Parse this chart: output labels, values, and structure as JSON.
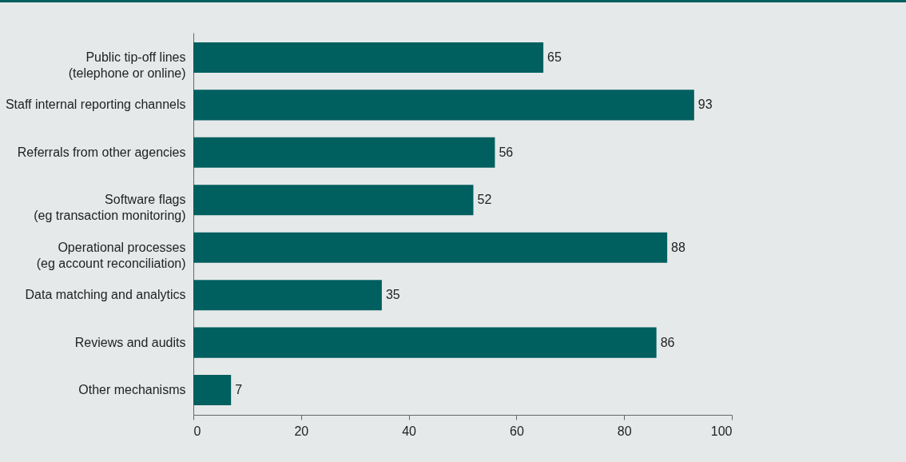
{
  "chart_data": {
    "type": "bar",
    "orientation": "horizontal",
    "categories": [
      "Public tip-off lines (telephone or online)",
      "Staff internal reporting channels",
      "Referrals from other agencies",
      "Software flags (eg transaction monitoring)",
      "Operational processes (eg account reconciliation)",
      "Data matching and analytics",
      "Reviews and audits",
      "Other mechanisms"
    ],
    "values": [
      65,
      93,
      56,
      52,
      88,
      35,
      86,
      7
    ],
    "color": "#005f5f",
    "xlim": [
      0,
      100
    ],
    "xticks": [
      0,
      20,
      40,
      60,
      80,
      100
    ],
    "grid": false,
    "data_labels": true
  }
}
